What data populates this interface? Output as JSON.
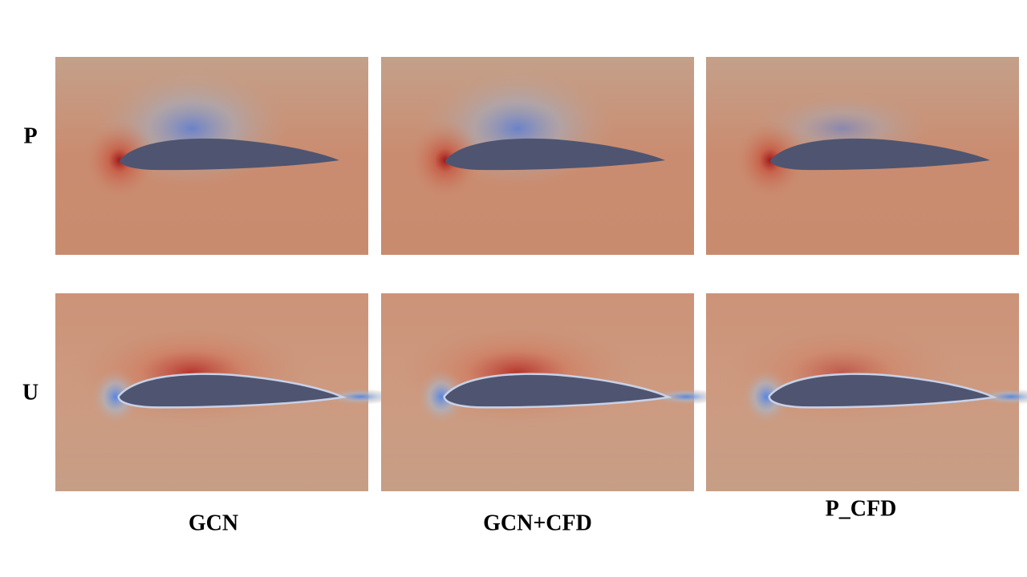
{
  "row_labels": [
    "P",
    "U"
  ],
  "column_labels": [
    "GCN",
    "GCN+CFD",
    "P_CFD"
  ]
}
